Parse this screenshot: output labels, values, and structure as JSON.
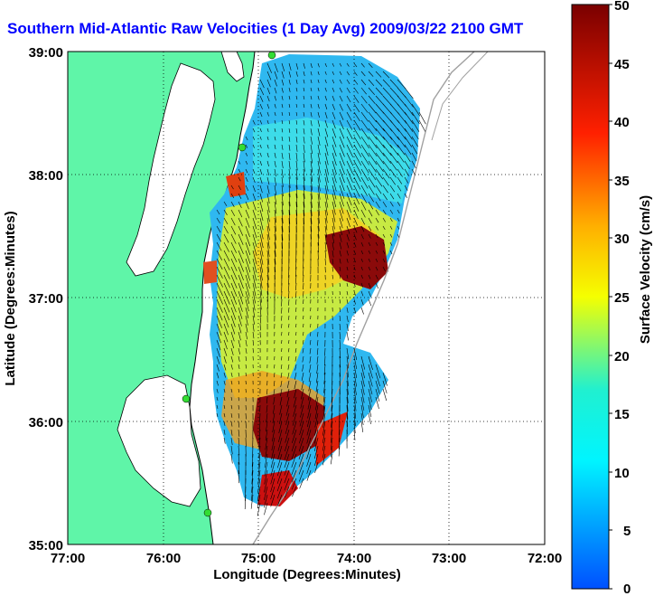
{
  "title": "Southern Mid-Atlantic Raw Velocities (1 Day Avg) 2009/03/22 2100 GMT",
  "map": {
    "xlabel": "Longitude (Degrees:Minutes)",
    "ylabel": "Latitude (Degrees:Minutes)",
    "x_ticks": [
      "77:00",
      "76:00",
      "75:00",
      "74:00",
      "73:00",
      "72:00"
    ],
    "y_ticks": [
      "39:00",
      "38:00",
      "37:00",
      "36:00",
      "35:00"
    ],
    "grid": "dotted",
    "land_color": "#5ff5a8",
    "coast_color": "#000000",
    "isobath_color": "#a0a0a0",
    "station_color": "#33dd33",
    "arrow_color": "#000000"
  },
  "colorbar": {
    "label": "Surface Velocity (cm/s)",
    "ticks": [
      "50",
      "45",
      "40",
      "35",
      "30",
      "25",
      "20",
      "15",
      "10",
      "5",
      "0"
    ],
    "colors": [
      "#0044ff",
      "#00ffff",
      "#ffff00",
      "#ff8800",
      "#ff0000",
      "#800000"
    ]
  },
  "icons": {
    "station": "circle-marker-icon",
    "velocity": "arrow-icon"
  }
}
